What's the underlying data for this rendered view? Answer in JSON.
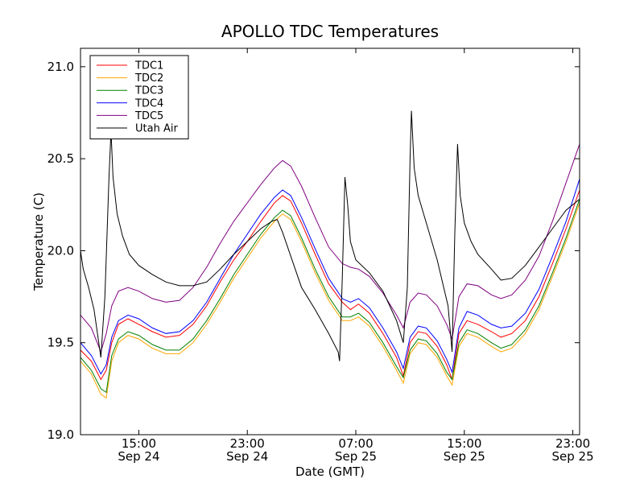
{
  "chart_data": {
    "type": "line",
    "title": "APOLLO TDC Temperatures",
    "xlabel": "Date (GMT)",
    "ylabel": "Temperature (C)",
    "x_unit": "hours since Sep 24 00:00 GMT",
    "xlim": [
      10.7,
      47.5
    ],
    "ylim": [
      19.0,
      21.1
    ],
    "yticks": [
      {
        "value": 19.0,
        "label": "19.0"
      },
      {
        "value": 19.5,
        "label": "19.5"
      },
      {
        "value": 20.0,
        "label": "20.0"
      },
      {
        "value": 20.5,
        "label": "20.5"
      },
      {
        "value": 21.0,
        "label": "21.0"
      }
    ],
    "xticks": [
      {
        "value": 15,
        "time": "15:00",
        "date": "Sep 24"
      },
      {
        "value": 23,
        "time": "23:00",
        "date": "Sep 24"
      },
      {
        "value": 31,
        "time": "07:00",
        "date": "Sep 25"
      },
      {
        "value": 39,
        "time": "15:00",
        "date": "Sep 25"
      },
      {
        "value": 47,
        "time": "23:00",
        "date": "Sep 25"
      }
    ],
    "legend": {
      "position": "top-left"
    },
    "series": [
      {
        "name": "TDC1",
        "color": "#ff0000",
        "points": [
          [
            10.7,
            19.46
          ],
          [
            11.5,
            19.4
          ],
          [
            12.2,
            19.3
          ],
          [
            12.6,
            19.35
          ],
          [
            13.0,
            19.5
          ],
          [
            13.5,
            19.6
          ],
          [
            14.2,
            19.63
          ],
          [
            15.0,
            19.6
          ],
          [
            16.0,
            19.56
          ],
          [
            17.0,
            19.53
          ],
          [
            18.0,
            19.54
          ],
          [
            19.0,
            19.6
          ],
          [
            20.0,
            19.7
          ],
          [
            21.0,
            19.83
          ],
          [
            22.0,
            19.95
          ],
          [
            23.0,
            20.05
          ],
          [
            24.0,
            20.16
          ],
          [
            25.0,
            20.26
          ],
          [
            25.6,
            20.3
          ],
          [
            26.2,
            20.27
          ],
          [
            27.0,
            20.15
          ],
          [
            28.0,
            19.98
          ],
          [
            29.0,
            19.82
          ],
          [
            30.0,
            19.72
          ],
          [
            30.6,
            19.68
          ],
          [
            31.2,
            19.71
          ],
          [
            32.0,
            19.66
          ],
          [
            33.0,
            19.55
          ],
          [
            34.0,
            19.42
          ],
          [
            34.5,
            19.32
          ],
          [
            35.0,
            19.5
          ],
          [
            35.6,
            19.56
          ],
          [
            36.2,
            19.55
          ],
          [
            37.0,
            19.48
          ],
          [
            37.7,
            19.38
          ],
          [
            38.1,
            19.3
          ],
          [
            38.6,
            19.55
          ],
          [
            39.2,
            19.62
          ],
          [
            40.0,
            19.6
          ],
          [
            41.0,
            19.56
          ],
          [
            41.7,
            19.53
          ],
          [
            42.5,
            19.55
          ],
          [
            43.5,
            19.62
          ],
          [
            44.5,
            19.75
          ],
          [
            45.5,
            19.93
          ],
          [
            46.5,
            20.12
          ],
          [
            47.5,
            20.33
          ]
        ]
      },
      {
        "name": "TDC2",
        "color": "#ffa500",
        "points": [
          [
            10.7,
            19.4
          ],
          [
            11.5,
            19.33
          ],
          [
            12.2,
            19.22
          ],
          [
            12.6,
            19.2
          ],
          [
            13.0,
            19.4
          ],
          [
            13.5,
            19.5
          ],
          [
            14.2,
            19.54
          ],
          [
            15.0,
            19.52
          ],
          [
            16.0,
            19.47
          ],
          [
            17.0,
            19.44
          ],
          [
            18.0,
            19.44
          ],
          [
            19.0,
            19.5
          ],
          [
            20.0,
            19.6
          ],
          [
            21.0,
            19.72
          ],
          [
            22.0,
            19.85
          ],
          [
            23.0,
            19.96
          ],
          [
            24.0,
            20.07
          ],
          [
            25.0,
            20.16
          ],
          [
            25.6,
            20.2
          ],
          [
            26.2,
            20.17
          ],
          [
            27.0,
            20.05
          ],
          [
            28.0,
            19.88
          ],
          [
            29.0,
            19.73
          ],
          [
            30.0,
            19.62
          ],
          [
            30.6,
            19.62
          ],
          [
            31.2,
            19.64
          ],
          [
            32.0,
            19.59
          ],
          [
            33.0,
            19.48
          ],
          [
            34.0,
            19.35
          ],
          [
            34.5,
            19.28
          ],
          [
            35.0,
            19.44
          ],
          [
            35.6,
            19.5
          ],
          [
            36.2,
            19.49
          ],
          [
            37.0,
            19.42
          ],
          [
            37.7,
            19.32
          ],
          [
            38.1,
            19.27
          ],
          [
            38.6,
            19.48
          ],
          [
            39.2,
            19.55
          ],
          [
            40.0,
            19.53
          ],
          [
            41.0,
            19.48
          ],
          [
            41.7,
            19.45
          ],
          [
            42.5,
            19.47
          ],
          [
            43.5,
            19.55
          ],
          [
            44.5,
            19.68
          ],
          [
            45.5,
            19.86
          ],
          [
            46.5,
            20.05
          ],
          [
            47.5,
            20.26
          ]
        ]
      },
      {
        "name": "TDC3",
        "color": "#008000",
        "points": [
          [
            10.7,
            19.42
          ],
          [
            11.5,
            19.35
          ],
          [
            12.2,
            19.25
          ],
          [
            12.6,
            19.23
          ],
          [
            13.0,
            19.43
          ],
          [
            13.5,
            19.52
          ],
          [
            14.2,
            19.56
          ],
          [
            15.0,
            19.54
          ],
          [
            16.0,
            19.49
          ],
          [
            17.0,
            19.46
          ],
          [
            18.0,
            19.46
          ],
          [
            19.0,
            19.52
          ],
          [
            20.0,
            19.62
          ],
          [
            21.0,
            19.74
          ],
          [
            22.0,
            19.87
          ],
          [
            23.0,
            19.98
          ],
          [
            24.0,
            20.09
          ],
          [
            25.0,
            20.18
          ],
          [
            25.6,
            20.22
          ],
          [
            26.2,
            20.19
          ],
          [
            27.0,
            20.07
          ],
          [
            28.0,
            19.9
          ],
          [
            29.0,
            19.75
          ],
          [
            30.0,
            19.64
          ],
          [
            30.6,
            19.64
          ],
          [
            31.2,
            19.66
          ],
          [
            32.0,
            19.61
          ],
          [
            33.0,
            19.5
          ],
          [
            34.0,
            19.37
          ],
          [
            34.5,
            19.31
          ],
          [
            35.0,
            19.46
          ],
          [
            35.6,
            19.52
          ],
          [
            36.2,
            19.51
          ],
          [
            37.0,
            19.44
          ],
          [
            37.7,
            19.34
          ],
          [
            38.1,
            19.3
          ],
          [
            38.6,
            19.5
          ],
          [
            39.2,
            19.57
          ],
          [
            40.0,
            19.55
          ],
          [
            41.0,
            19.5
          ],
          [
            41.7,
            19.47
          ],
          [
            42.5,
            19.49
          ],
          [
            43.5,
            19.57
          ],
          [
            44.5,
            19.7
          ],
          [
            45.5,
            19.88
          ],
          [
            46.5,
            20.07
          ],
          [
            47.5,
            20.28
          ]
        ]
      },
      {
        "name": "TDC4",
        "color": "#0000ff",
        "points": [
          [
            10.7,
            19.5
          ],
          [
            11.5,
            19.43
          ],
          [
            12.2,
            19.33
          ],
          [
            12.6,
            19.38
          ],
          [
            13.0,
            19.53
          ],
          [
            13.5,
            19.62
          ],
          [
            14.2,
            19.65
          ],
          [
            15.0,
            19.63
          ],
          [
            16.0,
            19.58
          ],
          [
            17.0,
            19.55
          ],
          [
            18.0,
            19.56
          ],
          [
            19.0,
            19.62
          ],
          [
            20.0,
            19.72
          ],
          [
            21.0,
            19.85
          ],
          [
            22.0,
            19.98
          ],
          [
            23.0,
            20.09
          ],
          [
            24.0,
            20.2
          ],
          [
            25.0,
            20.29
          ],
          [
            25.6,
            20.33
          ],
          [
            26.2,
            20.3
          ],
          [
            27.0,
            20.18
          ],
          [
            28.0,
            20.01
          ],
          [
            29.0,
            19.85
          ],
          [
            30.0,
            19.74
          ],
          [
            30.6,
            19.72
          ],
          [
            31.2,
            19.74
          ],
          [
            32.0,
            19.69
          ],
          [
            33.0,
            19.58
          ],
          [
            34.0,
            19.45
          ],
          [
            34.5,
            19.36
          ],
          [
            35.0,
            19.53
          ],
          [
            35.6,
            19.59
          ],
          [
            36.2,
            19.58
          ],
          [
            37.0,
            19.51
          ],
          [
            37.7,
            19.41
          ],
          [
            38.1,
            19.34
          ],
          [
            38.6,
            19.58
          ],
          [
            39.2,
            19.67
          ],
          [
            40.0,
            19.65
          ],
          [
            41.0,
            19.6
          ],
          [
            41.7,
            19.58
          ],
          [
            42.5,
            19.59
          ],
          [
            43.5,
            19.66
          ],
          [
            44.5,
            19.79
          ],
          [
            45.5,
            19.97
          ],
          [
            46.5,
            20.16
          ],
          [
            47.5,
            20.39
          ]
        ]
      },
      {
        "name": "TDC5",
        "color": "#800080",
        "points": [
          [
            10.7,
            19.65
          ],
          [
            11.5,
            19.58
          ],
          [
            12.2,
            19.45
          ],
          [
            12.6,
            19.55
          ],
          [
            13.0,
            19.7
          ],
          [
            13.5,
            19.78
          ],
          [
            14.2,
            19.8
          ],
          [
            15.0,
            19.78
          ],
          [
            16.0,
            19.74
          ],
          [
            17.0,
            19.72
          ],
          [
            18.0,
            19.73
          ],
          [
            19.0,
            19.8
          ],
          [
            20.0,
            19.91
          ],
          [
            21.0,
            20.04
          ],
          [
            22.0,
            20.16
          ],
          [
            23.0,
            20.26
          ],
          [
            24.0,
            20.36
          ],
          [
            25.0,
            20.45
          ],
          [
            25.6,
            20.49
          ],
          [
            26.2,
            20.46
          ],
          [
            27.0,
            20.35
          ],
          [
            28.0,
            20.18
          ],
          [
            29.0,
            20.02
          ],
          [
            30.0,
            19.93
          ],
          [
            30.6,
            19.91
          ],
          [
            31.2,
            19.9
          ],
          [
            32.0,
            19.86
          ],
          [
            33.0,
            19.77
          ],
          [
            34.0,
            19.65
          ],
          [
            34.5,
            19.58
          ],
          [
            35.0,
            19.72
          ],
          [
            35.6,
            19.77
          ],
          [
            36.2,
            19.76
          ],
          [
            37.0,
            19.7
          ],
          [
            37.7,
            19.6
          ],
          [
            38.1,
            19.52
          ],
          [
            38.6,
            19.75
          ],
          [
            39.2,
            19.82
          ],
          [
            40.0,
            19.81
          ],
          [
            41.0,
            19.76
          ],
          [
            41.7,
            19.74
          ],
          [
            42.5,
            19.76
          ],
          [
            43.5,
            19.84
          ],
          [
            44.5,
            19.97
          ],
          [
            45.5,
            20.16
          ],
          [
            46.5,
            20.37
          ],
          [
            47.5,
            20.58
          ]
        ]
      },
      {
        "name": "Utah Air",
        "color": "#000000",
        "points": [
          [
            10.7,
            20.0
          ],
          [
            10.9,
            19.9
          ],
          [
            11.3,
            19.8
          ],
          [
            11.7,
            19.68
          ],
          [
            12.2,
            19.42
          ],
          [
            12.5,
            19.75
          ],
          [
            12.8,
            20.4
          ],
          [
            12.95,
            20.65
          ],
          [
            13.1,
            20.4
          ],
          [
            13.4,
            20.2
          ],
          [
            13.8,
            20.08
          ],
          [
            14.3,
            19.98
          ],
          [
            15.0,
            19.92
          ],
          [
            16.0,
            19.87
          ],
          [
            17.0,
            19.83
          ],
          [
            18.0,
            19.81
          ],
          [
            19.0,
            19.81
          ],
          [
            20.0,
            19.83
          ],
          [
            21.0,
            19.9
          ],
          [
            22.0,
            19.98
          ],
          [
            23.0,
            20.05
          ],
          [
            24.0,
            20.12
          ],
          [
            24.8,
            20.16
          ],
          [
            25.2,
            20.17
          ],
          [
            25.6,
            20.1
          ],
          [
            26.3,
            19.95
          ],
          [
            27.0,
            19.8
          ],
          [
            28.0,
            19.68
          ],
          [
            29.0,
            19.55
          ],
          [
            29.7,
            19.45
          ],
          [
            29.8,
            19.4
          ],
          [
            30.0,
            19.85
          ],
          [
            30.2,
            20.4
          ],
          [
            30.4,
            20.25
          ],
          [
            30.6,
            20.05
          ],
          [
            31.0,
            19.95
          ],
          [
            32.0,
            19.88
          ],
          [
            33.0,
            19.78
          ],
          [
            34.0,
            19.62
          ],
          [
            34.5,
            19.5
          ],
          [
            34.8,
            19.8
          ],
          [
            35.0,
            20.5
          ],
          [
            35.1,
            20.76
          ],
          [
            35.3,
            20.45
          ],
          [
            35.6,
            20.3
          ],
          [
            36.2,
            20.15
          ],
          [
            37.0,
            19.95
          ],
          [
            37.8,
            19.7
          ],
          [
            38.1,
            19.45
          ],
          [
            38.3,
            20.1
          ],
          [
            38.5,
            20.58
          ],
          [
            38.7,
            20.3
          ],
          [
            39.0,
            20.15
          ],
          [
            39.5,
            20.05
          ],
          [
            40.0,
            19.98
          ],
          [
            41.0,
            19.9
          ],
          [
            41.7,
            19.84
          ],
          [
            42.5,
            19.85
          ],
          [
            43.5,
            19.92
          ],
          [
            44.5,
            20.02
          ],
          [
            45.5,
            20.12
          ],
          [
            46.5,
            20.22
          ],
          [
            47.5,
            20.28
          ]
        ]
      }
    ]
  }
}
